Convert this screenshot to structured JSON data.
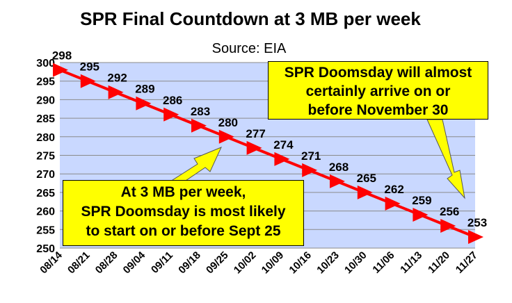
{
  "chart_data": {
    "type": "line",
    "title": "SPR Final Countdown at 3 MB per week",
    "subtitle": "Source: EIA",
    "xlabel": "",
    "ylabel": "",
    "categories": [
      "08/14",
      "08/21",
      "08/28",
      "09/04",
      "09/11",
      "09/18",
      "09/25",
      "10/02",
      "10/09",
      "10/16",
      "10/23",
      "10/30",
      "11/06",
      "11/13",
      "11/20",
      "11/27"
    ],
    "series": [
      {
        "values": [
          298,
          295,
          292,
          289,
          286,
          283,
          280,
          277,
          274,
          271,
          268,
          265,
          262,
          259,
          256,
          253
        ]
      }
    ],
    "data_labels": [
      "298",
      "295",
      "292",
      "289",
      "286",
      "283",
      "280",
      "277",
      "274",
      "271",
      "268",
      "265",
      "262",
      "259",
      "256",
      "253"
    ],
    "yticks": [
      "250",
      "255",
      "260",
      "265",
      "270",
      "275",
      "280",
      "285",
      "290",
      "295",
      "300"
    ],
    "ylim": [
      250,
      300
    ],
    "grid": true,
    "legend": "none",
    "colors": {
      "plot_bg": "#c9d8ff",
      "line": "#ff0000",
      "marker": "#ff0000",
      "callout_bg": "#ffff00",
      "arrow": "#ffff00",
      "grid": "#8a8a8a"
    },
    "marker": "triangle-right",
    "annotations": [
      {
        "id": "right",
        "lines": [
          "SPR Doomsday will almost",
          "certainly arrive on or",
          "before November 30"
        ]
      },
      {
        "id": "left",
        "lines": [
          "At 3 MB per week,",
          "SPR Doomsday is most likely",
          "to start on or before Sept 25"
        ]
      }
    ]
  }
}
